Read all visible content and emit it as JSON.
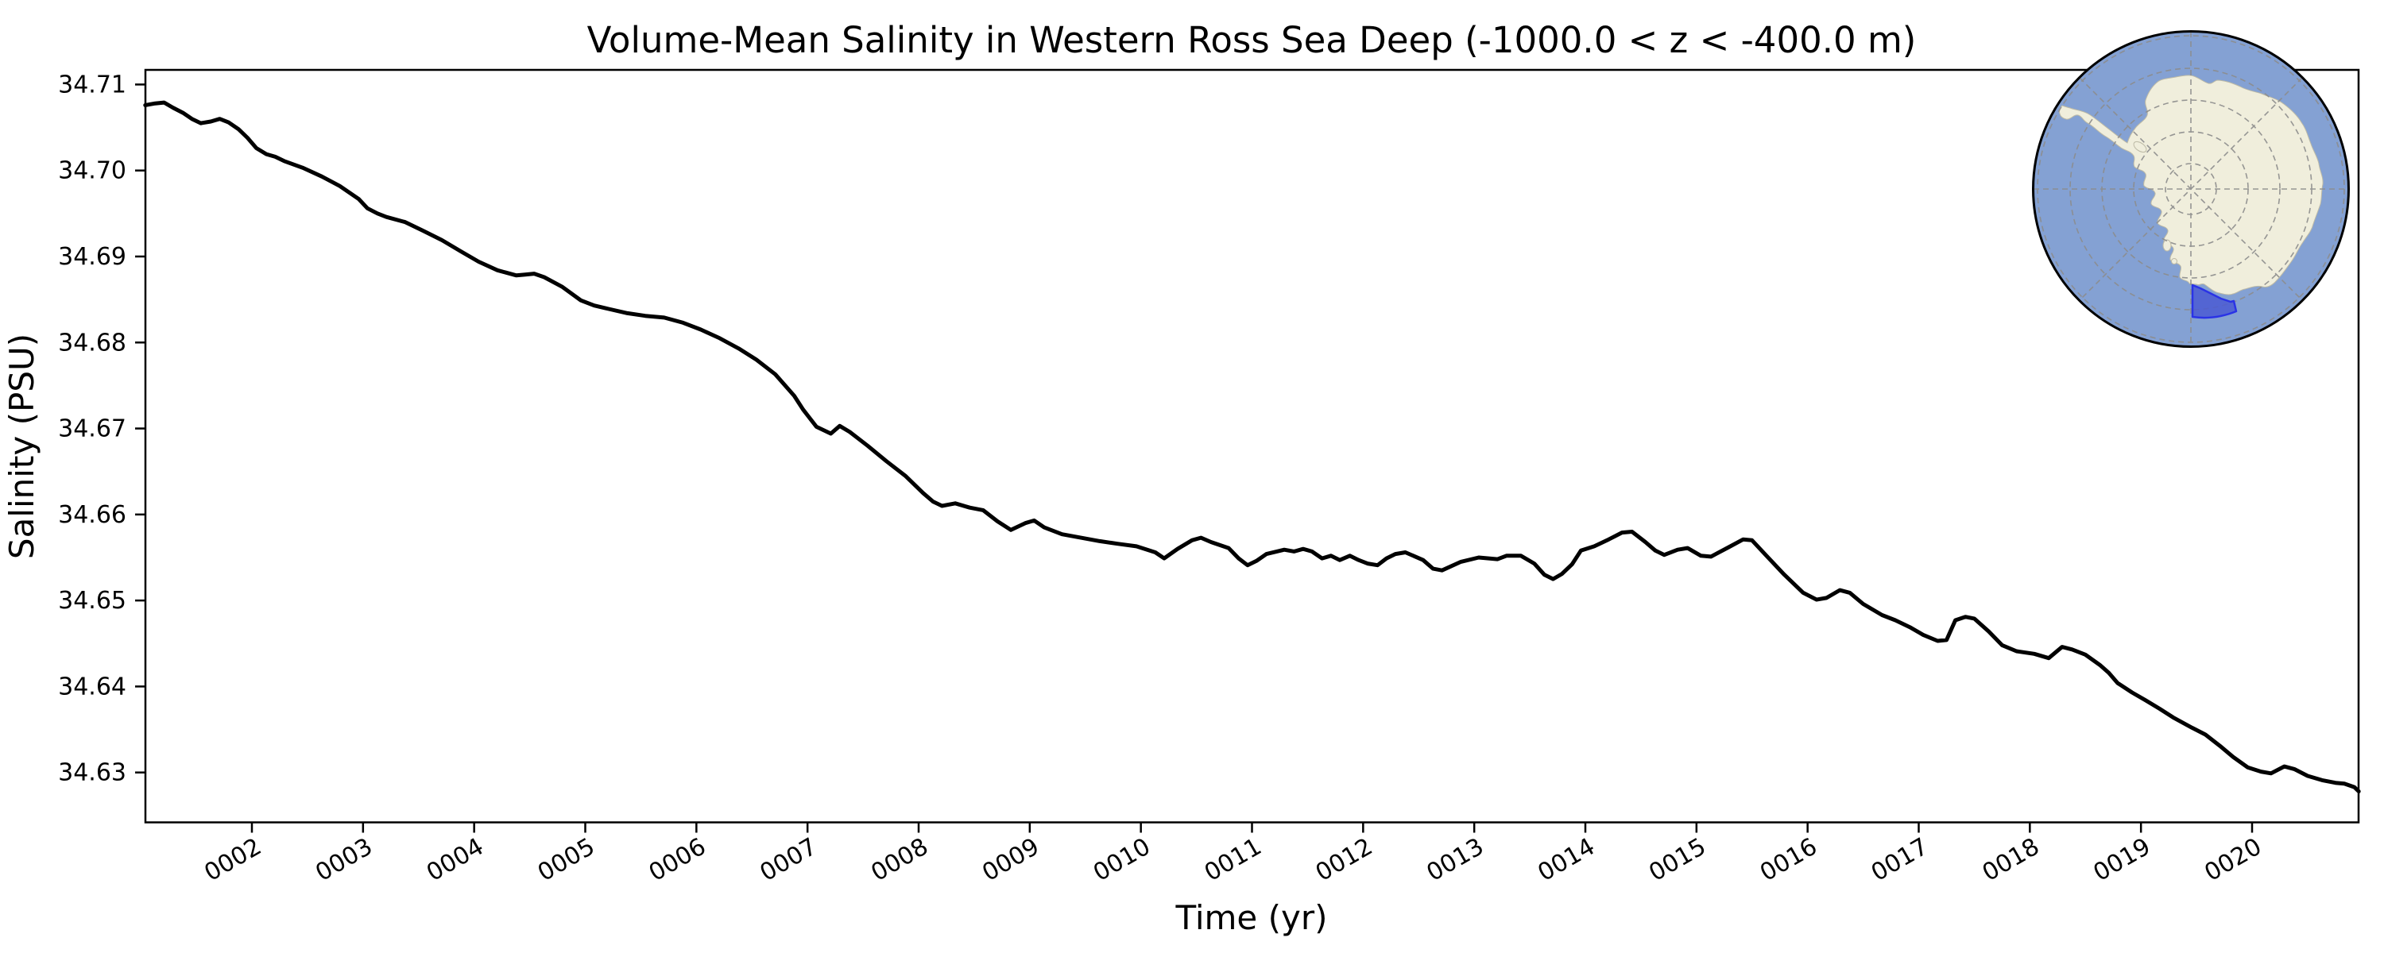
{
  "figure": {
    "title": "Volume-Mean Salinity in Western Ross Sea Deep (-1000.0 < z < -400.0 m)",
    "background": "#ffffff"
  },
  "axes": {
    "x": {
      "label": "Time (yr)",
      "ticks": [
        "0002",
        "0003",
        "0004",
        "0005",
        "0006",
        "0007",
        "0008",
        "0009",
        "0010",
        "0011",
        "0012",
        "0013",
        "0014",
        "0015",
        "0016",
        "0017",
        "0018",
        "0019",
        "0020"
      ],
      "lim": [
        1.0417,
        20.9583
      ]
    },
    "y": {
      "label": "Salinity (PSU)",
      "ticks": [
        "34.63",
        "34.64",
        "34.65",
        "34.66",
        "34.67",
        "34.68",
        "34.69",
        "34.70",
        "34.71"
      ],
      "lim": [
        34.6242,
        34.7117
      ]
    }
  },
  "chart_data": {
    "type": "line",
    "title": "Volume-Mean Salinity in Western Ross Sea Deep (-1000.0 < z < -400.0 m)",
    "xlabel": "Time (yr)",
    "ylabel": "Salinity (PSU)",
    "xlim": [
      1.0417,
      20.9583
    ],
    "ylim": [
      34.6242,
      34.7117
    ],
    "grid": false,
    "legend": false,
    "series": [
      {
        "name": "volume-mean-salinity",
        "color": "#000000",
        "linewidth": 5,
        "points": [
          [
            1.04,
            34.7076
          ],
          [
            1.13,
            34.7078
          ],
          [
            1.21,
            34.7079
          ],
          [
            1.29,
            34.7073
          ],
          [
            1.38,
            34.7067
          ],
          [
            1.46,
            34.706
          ],
          [
            1.54,
            34.7055
          ],
          [
            1.63,
            34.7057
          ],
          [
            1.71,
            34.706
          ],
          [
            1.79,
            34.7056
          ],
          [
            1.88,
            34.7048
          ],
          [
            1.96,
            34.7038
          ],
          [
            2.04,
            34.7026
          ],
          [
            2.13,
            34.7019
          ],
          [
            2.21,
            34.7016
          ],
          [
            2.29,
            34.7011
          ],
          [
            2.46,
            34.7003
          ],
          [
            2.63,
            34.6993
          ],
          [
            2.79,
            34.6982
          ],
          [
            2.96,
            34.6967
          ],
          [
            3.04,
            34.6956
          ],
          [
            3.13,
            34.695
          ],
          [
            3.21,
            34.6946
          ],
          [
            3.38,
            34.694
          ],
          [
            3.54,
            34.693
          ],
          [
            3.71,
            34.6919
          ],
          [
            3.88,
            34.6906
          ],
          [
            4.04,
            34.6894
          ],
          [
            4.21,
            34.6884
          ],
          [
            4.38,
            34.6878
          ],
          [
            4.46,
            34.6879
          ],
          [
            4.54,
            34.688
          ],
          [
            4.63,
            34.6876
          ],
          [
            4.79,
            34.6865
          ],
          [
            4.96,
            34.6849
          ],
          [
            5.08,
            34.6843
          ],
          [
            5.21,
            34.6839
          ],
          [
            5.38,
            34.6834
          ],
          [
            5.54,
            34.6831
          ],
          [
            5.71,
            34.6829
          ],
          [
            5.88,
            34.6823
          ],
          [
            6.04,
            34.6815
          ],
          [
            6.21,
            34.6805
          ],
          [
            6.38,
            34.6793
          ],
          [
            6.54,
            34.678
          ],
          [
            6.71,
            34.6763
          ],
          [
            6.88,
            34.6738
          ],
          [
            6.96,
            34.6722
          ],
          [
            7.08,
            34.6702
          ],
          [
            7.21,
            34.6694
          ],
          [
            7.29,
            34.6703
          ],
          [
            7.38,
            34.6696
          ],
          [
            7.54,
            34.668
          ],
          [
            7.71,
            34.6662
          ],
          [
            7.88,
            34.6645
          ],
          [
            8.04,
            34.6625
          ],
          [
            8.13,
            34.6615
          ],
          [
            8.21,
            34.661
          ],
          [
            8.33,
            34.6613
          ],
          [
            8.46,
            34.6608
          ],
          [
            8.58,
            34.6605
          ],
          [
            8.71,
            34.6592
          ],
          [
            8.83,
            34.6582
          ],
          [
            8.96,
            34.659
          ],
          [
            9.04,
            34.6593
          ],
          [
            9.13,
            34.6585
          ],
          [
            9.29,
            34.6577
          ],
          [
            9.46,
            34.6573
          ],
          [
            9.63,
            34.6569
          ],
          [
            9.79,
            34.6566
          ],
          [
            9.96,
            34.6563
          ],
          [
            10.13,
            34.6556
          ],
          [
            10.21,
            34.6549
          ],
          [
            10.33,
            34.656
          ],
          [
            10.46,
            34.657
          ],
          [
            10.54,
            34.6573
          ],
          [
            10.63,
            34.6568
          ],
          [
            10.79,
            34.6561
          ],
          [
            10.88,
            34.6549
          ],
          [
            10.96,
            34.6541
          ],
          [
            11.04,
            34.6546
          ],
          [
            11.13,
            34.6554
          ],
          [
            11.29,
            34.6559
          ],
          [
            11.38,
            34.6557
          ],
          [
            11.46,
            34.656
          ],
          [
            11.54,
            34.6557
          ],
          [
            11.63,
            34.6549
          ],
          [
            11.71,
            34.6552
          ],
          [
            11.79,
            34.6547
          ],
          [
            11.88,
            34.6552
          ],
          [
            11.96,
            34.6547
          ],
          [
            12.04,
            34.6543
          ],
          [
            12.13,
            34.6541
          ],
          [
            12.21,
            34.6549
          ],
          [
            12.29,
            34.6554
          ],
          [
            12.38,
            34.6556
          ],
          [
            12.54,
            34.6547
          ],
          [
            12.63,
            34.6537
          ],
          [
            12.71,
            34.6535
          ],
          [
            12.88,
            34.6545
          ],
          [
            13.04,
            34.655
          ],
          [
            13.21,
            34.6548
          ],
          [
            13.29,
            34.6552
          ],
          [
            13.42,
            34.6552
          ],
          [
            13.54,
            34.6543
          ],
          [
            13.63,
            34.653
          ],
          [
            13.71,
            34.6525
          ],
          [
            13.79,
            34.6531
          ],
          [
            13.88,
            34.6542
          ],
          [
            13.96,
            34.6558
          ],
          [
            14.08,
            34.6563
          ],
          [
            14.21,
            34.6571
          ],
          [
            14.33,
            34.6579
          ],
          [
            14.42,
            34.658
          ],
          [
            14.54,
            34.6568
          ],
          [
            14.63,
            34.6558
          ],
          [
            14.71,
            34.6553
          ],
          [
            14.83,
            34.6559
          ],
          [
            14.92,
            34.6561
          ],
          [
            15.04,
            34.6552
          ],
          [
            15.13,
            34.6551
          ],
          [
            15.29,
            34.6562
          ],
          [
            15.42,
            34.6571
          ],
          [
            15.5,
            34.657
          ],
          [
            15.63,
            34.6552
          ],
          [
            15.79,
            34.653
          ],
          [
            15.96,
            34.6509
          ],
          [
            16.08,
            34.6501
          ],
          [
            16.17,
            34.6503
          ],
          [
            16.29,
            34.6512
          ],
          [
            16.38,
            34.6509
          ],
          [
            16.5,
            34.6496
          ],
          [
            16.67,
            34.6483
          ],
          [
            16.79,
            34.6477
          ],
          [
            16.92,
            34.6469
          ],
          [
            17.04,
            34.646
          ],
          [
            17.17,
            34.6453
          ],
          [
            17.25,
            34.6454
          ],
          [
            17.33,
            34.6477
          ],
          [
            17.42,
            34.6481
          ],
          [
            17.5,
            34.6479
          ],
          [
            17.63,
            34.6464
          ],
          [
            17.75,
            34.6448
          ],
          [
            17.88,
            34.6441
          ],
          [
            18.04,
            34.6438
          ],
          [
            18.17,
            34.6433
          ],
          [
            18.29,
            34.6446
          ],
          [
            18.38,
            34.6443
          ],
          [
            18.5,
            34.6437
          ],
          [
            18.63,
            34.6425
          ],
          [
            18.71,
            34.6416
          ],
          [
            18.79,
            34.6404
          ],
          [
            18.92,
            34.6393
          ],
          [
            19.04,
            34.6384
          ],
          [
            19.17,
            34.6374
          ],
          [
            19.29,
            34.6364
          ],
          [
            19.46,
            34.6352
          ],
          [
            19.58,
            34.6344
          ],
          [
            19.71,
            34.6331
          ],
          [
            19.83,
            34.6318
          ],
          [
            19.96,
            34.6306
          ],
          [
            20.08,
            34.6301
          ],
          [
            20.17,
            34.6299
          ],
          [
            20.29,
            34.6307
          ],
          [
            20.38,
            34.6304
          ],
          [
            20.5,
            34.6296
          ],
          [
            20.63,
            34.6291
          ],
          [
            20.75,
            34.6288
          ],
          [
            20.83,
            34.6287
          ],
          [
            20.92,
            34.6283
          ],
          [
            20.96,
            34.6278
          ]
        ]
      }
    ]
  },
  "inset": {
    "description": "South polar stereographic locator map of Antarctica",
    "highlighted_region": "Western Ross Sea",
    "colors": {
      "ocean": "#84a1d3",
      "land": "#f0eedc",
      "coast": "#bdbaa6",
      "graticule": "#8c8c8c",
      "region_fill": "#4a5ad2",
      "region_edge": "#2a33e6",
      "rim": "#000000"
    }
  }
}
